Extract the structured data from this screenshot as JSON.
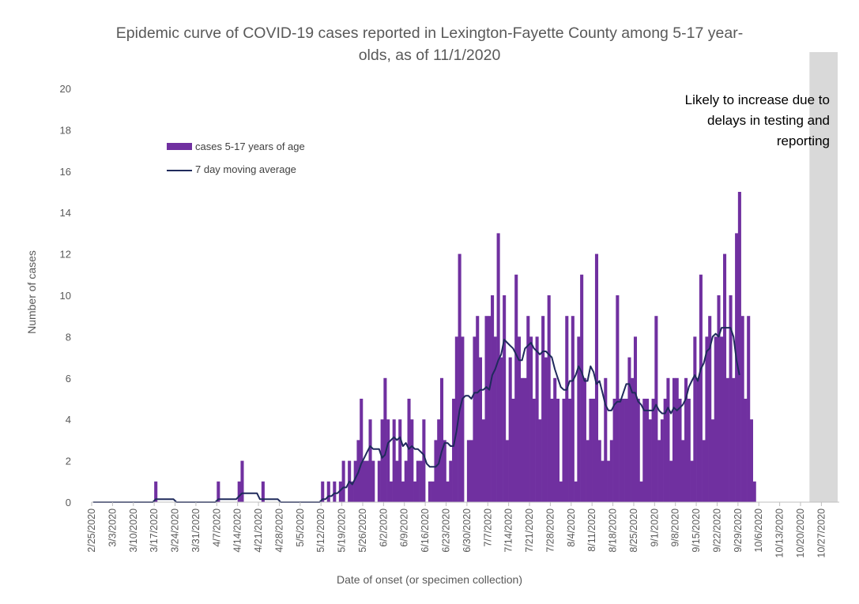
{
  "chart_data": {
    "type": "bar",
    "title": "Epidemic curve of COVID-19 cases reported in Lexington-Fayette County among 5-17 year-olds, as of 11/1/2020",
    "title_lines": [
      "Epidemic curve of COVID-19 cases reported in Lexington-Fayette County among 5-17 year-",
      "olds, as of 11/1/2020"
    ],
    "xlabel": "Date of onset (or specimen collection)",
    "ylabel": "Number of cases",
    "ylim": [
      0,
      20
    ],
    "yticks": [
      "0",
      "2",
      "4",
      "6",
      "8",
      "10",
      "12",
      "14",
      "16",
      "18",
      "20"
    ],
    "xticks": [
      "2/25/2020",
      "3/3/2020",
      "3/10/2020",
      "3/17/2020",
      "3/24/2020",
      "3/31/2020",
      "4/7/2020",
      "4/14/2020",
      "4/21/2020",
      "4/28/2020",
      "5/5/2020",
      "5/12/2020",
      "5/19/2020",
      "5/26/2020",
      "6/2/2020",
      "6/9/2020",
      "6/16/2020",
      "6/23/2020",
      "6/30/2020",
      "7/7/2020",
      "7/14/2020",
      "7/21/2020",
      "7/28/2020",
      "8/4/2020",
      "8/11/2020",
      "8/18/2020",
      "8/25/2020",
      "9/1/2020",
      "9/8/2020",
      "9/15/2020",
      "9/22/2020",
      "9/29/2020",
      "10/6/2020",
      "10/13/2020",
      "10/20/2020",
      "10/27/2020"
    ],
    "x_start": "2/25/2020",
    "x_end": "11/1/2020",
    "grid": false,
    "legend_position": "upper-left",
    "shaded_region": {
      "from": "10/23/2020",
      "to": "11/1/2020",
      "color": "#d9d9d9"
    },
    "annotation_lines": [
      "Likely to increase due to",
      "delays in testing and",
      "reporting"
    ],
    "series": [
      {
        "name": "cases 5-17 years of age",
        "type": "bar",
        "color": "#7030a0",
        "values": [
          0,
          0,
          0,
          0,
          0,
          0,
          0,
          0,
          0,
          0,
          0,
          0,
          0,
          0,
          0,
          0,
          0,
          0,
          0,
          0,
          0,
          1,
          0,
          0,
          0,
          0,
          0,
          0,
          0,
          0,
          0,
          0,
          0,
          0,
          0,
          0,
          0,
          0,
          0,
          0,
          0,
          0,
          1,
          0,
          0,
          0,
          0,
          0,
          0,
          1,
          2,
          0,
          0,
          0,
          0,
          0,
          0,
          1,
          0,
          0,
          0,
          0,
          0,
          0,
          0,
          0,
          0,
          0,
          0,
          0,
          0,
          0,
          0,
          0,
          0,
          0,
          0,
          1,
          0,
          1,
          0,
          1,
          0,
          1,
          2,
          0,
          2,
          1,
          2,
          3,
          5,
          2,
          2,
          4,
          2,
          0,
          2,
          4,
          6,
          4,
          1,
          4,
          2,
          4,
          1,
          2,
          5,
          4,
          1,
          2,
          2,
          4,
          0,
          1,
          1,
          3,
          4,
          6,
          3,
          1,
          2,
          5,
          8,
          12,
          8,
          0,
          3,
          3,
          8,
          9,
          7,
          4,
          9,
          9,
          10,
          8,
          13,
          7,
          10,
          3,
          7,
          5,
          11,
          8,
          6,
          6,
          9,
          8,
          5,
          8,
          4,
          9,
          7,
          10,
          5,
          6,
          5,
          1,
          5,
          9,
          5,
          9,
          1,
          8,
          11,
          6,
          3,
          5,
          5,
          12,
          3,
          2,
          6,
          2,
          3,
          5,
          10,
          5,
          5,
          5,
          7,
          6,
          8,
          5,
          1,
          5,
          5,
          4,
          5,
          9,
          3,
          4,
          5,
          6,
          2,
          6,
          6,
          5,
          3,
          6,
          5,
          2,
          8,
          6,
          11,
          3,
          8,
          9,
          4,
          8,
          10,
          8,
          12,
          6,
          10,
          6,
          13,
          15,
          9,
          5,
          9,
          4,
          1
        ],
        "notes": "daily values, one bar per day from 2/25/2020 to 10/31/2020 (approximate readings)"
      },
      {
        "name": "7 day moving average",
        "type": "line",
        "color": "#1f2a5c",
        "values": [
          0,
          0,
          0,
          0,
          0,
          0,
          0,
          0,
          0,
          0,
          0,
          0,
          0,
          0,
          0,
          0,
          0,
          0,
          0,
          0,
          0,
          0.14,
          0.14,
          0.14,
          0.14,
          0.14,
          0.14,
          0.14,
          0,
          0,
          0,
          0,
          0,
          0,
          0,
          0,
          0,
          0,
          0,
          0,
          0,
          0,
          0.14,
          0.14,
          0.14,
          0.14,
          0.14,
          0.14,
          0.14,
          0.29,
          0.43,
          0.43,
          0.43,
          0.43,
          0.43,
          0.43,
          0.14,
          0.14,
          0.14,
          0.14,
          0.14,
          0.14,
          0.14,
          0,
          0,
          0,
          0,
          0,
          0,
          0,
          0,
          0,
          0,
          0,
          0,
          0,
          0,
          0.14,
          0.14,
          0.29,
          0.29,
          0.43,
          0.43,
          0.57,
          0.71,
          0.71,
          1.0,
          0.86,
          1.14,
          1.43,
          1.86,
          2.14,
          2.43,
          2.71,
          2.57,
          2.57,
          2.57,
          2.14,
          2.29,
          2.86,
          3.0,
          3.14,
          3.0,
          3.14,
          2.71,
          2.86,
          2.57,
          2.71,
          2.57,
          2.57,
          2.43,
          2.29,
          1.86,
          1.71,
          1.71,
          1.71,
          1.86,
          2.43,
          2.86,
          2.86,
          2.71,
          2.71,
          3.43,
          4.43,
          5.0,
          5.14,
          5.14,
          5.0,
          5.29,
          5.29,
          5.43,
          5.43,
          5.57,
          5.43,
          6.14,
          6.43,
          6.86,
          7.14,
          7.86,
          7.71,
          7.57,
          7.43,
          7.14,
          6.86,
          6.86,
          7.43,
          7.57,
          7.71,
          7.43,
          7.29,
          7.14,
          7.29,
          7.29,
          7.14,
          7.0,
          6.43,
          6.0,
          5.57,
          5.43,
          5.43,
          5.86,
          5.86,
          6.14,
          6.57,
          6.29,
          5.86,
          5.86,
          6.57,
          6.29,
          5.71,
          5.86,
          5.29,
          4.71,
          4.43,
          4.43,
          4.71,
          4.86,
          4.86,
          5.29,
          5.71,
          5.71,
          5.29,
          5.29,
          4.86,
          4.71,
          4.43,
          4.43,
          4.43,
          4.43,
          4.71,
          4.43,
          4.29,
          4.29,
          4.57,
          4.29,
          4.57,
          4.43,
          4.57,
          4.71,
          5.0,
          5.57,
          5.86,
          6.14,
          5.86,
          6.43,
          6.71,
          7.29,
          7.43,
          8.0,
          8.14,
          8.0,
          8.43,
          8.43,
          8.43,
          8.43,
          8.0,
          6.86,
          6.14
        ],
        "notes": "trailing 7-day average, one point per day (approximate readings)"
      }
    ]
  }
}
